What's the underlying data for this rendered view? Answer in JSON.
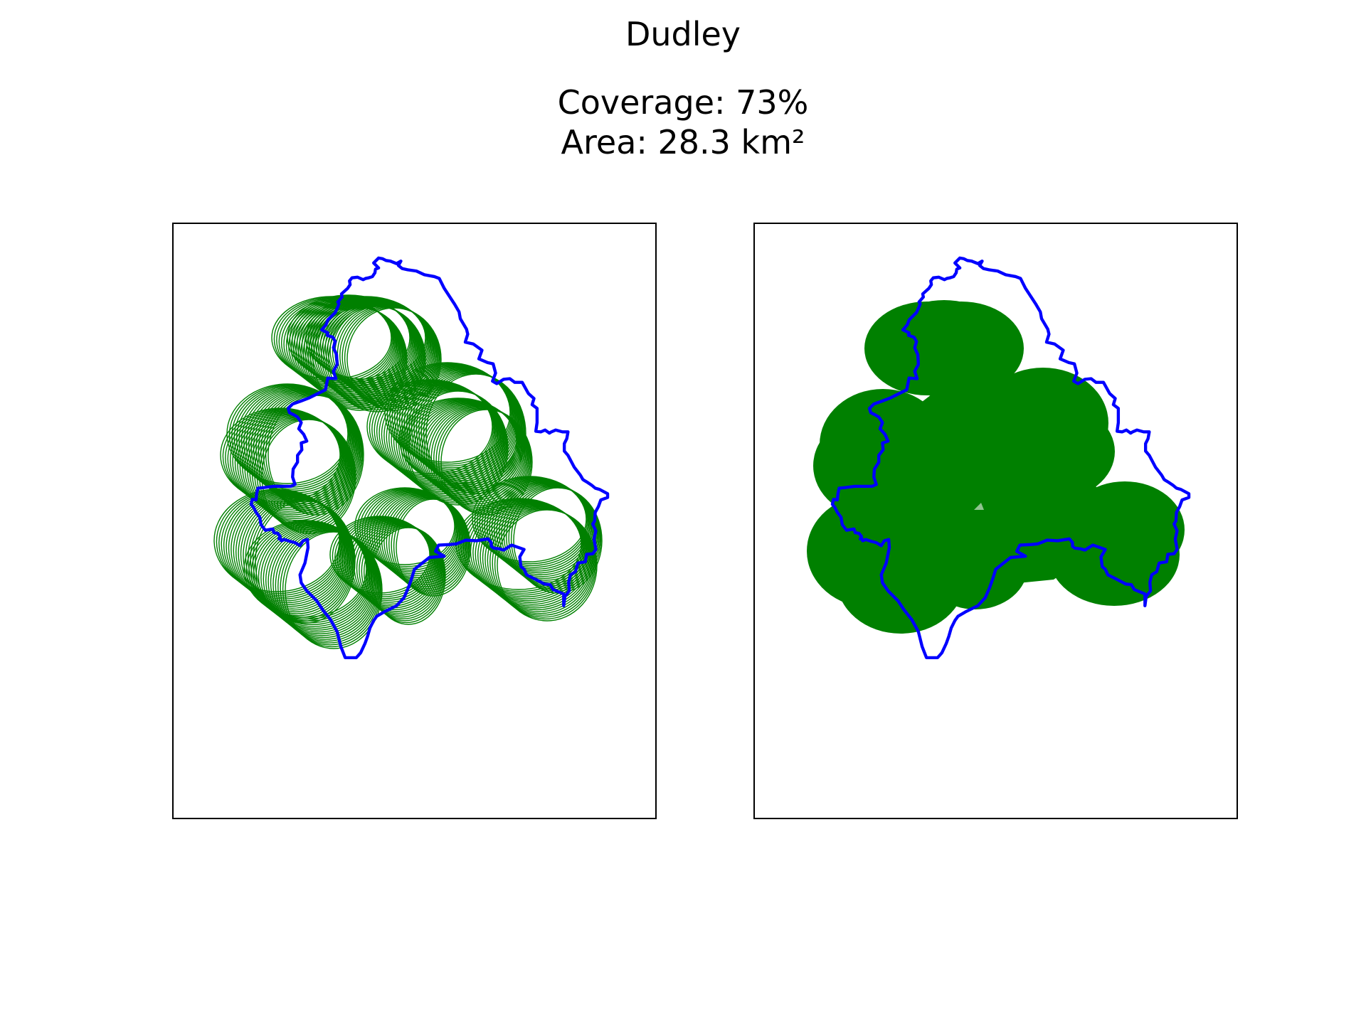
{
  "title": "Dudley",
  "coverage_text": "Coverage: 73%",
  "area_text": "Area: 28.3 km²",
  "colors": {
    "boundary": "#0000ff",
    "coverage": "#008000",
    "frame": "#000000"
  },
  "panels": [
    {
      "name": "outline-view",
      "style": "outlined-circles"
    },
    {
      "name": "filled-view",
      "style": "filled-circles"
    }
  ]
}
